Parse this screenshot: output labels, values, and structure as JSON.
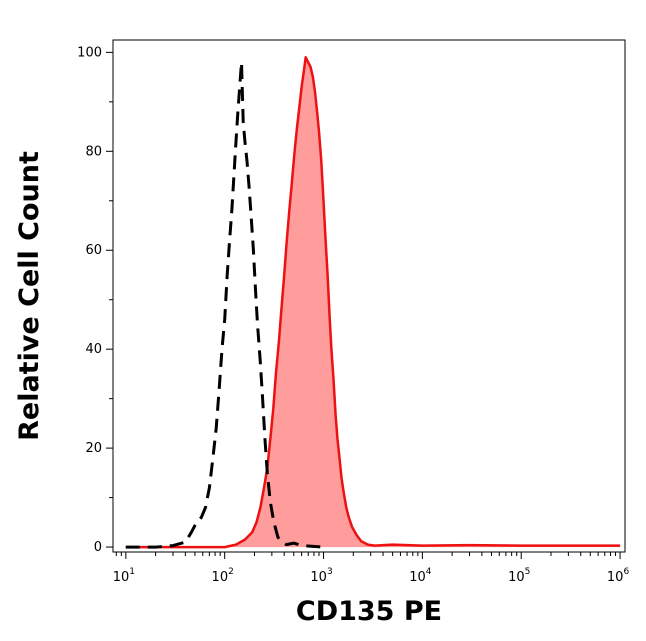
{
  "chart_data": {
    "type": "area",
    "title": "",
    "xlabel": "CD135 PE",
    "ylabel": "Relative Cell Count",
    "x_scale": "log",
    "xlim": [
      10,
      1000000
    ],
    "ylim": [
      0,
      100
    ],
    "grid": false,
    "x_ticks": [
      {
        "base": "10",
        "exp": "1",
        "value": 10
      },
      {
        "base": "10",
        "exp": "2",
        "value": 100
      },
      {
        "base": "10",
        "exp": "3",
        "value": 1000
      },
      {
        "base": "10",
        "exp": "4",
        "value": 10000
      },
      {
        "base": "10",
        "exp": "5",
        "value": 100000
      },
      {
        "base": "10",
        "exp": "6",
        "value": 1000000
      }
    ],
    "y_ticks": [
      {
        "label": "0",
        "value": 0
      },
      {
        "label": "20",
        "value": 20
      },
      {
        "label": "40",
        "value": 40
      },
      {
        "label": "60",
        "value": 60
      },
      {
        "label": "80",
        "value": 80
      },
      {
        "label": "100",
        "value": 100
      }
    ],
    "series": [
      {
        "style": "dashed",
        "line_color": "#000000",
        "fill": false,
        "points": [
          [
            10,
            0
          ],
          [
            20,
            0
          ],
          [
            30,
            0.3
          ],
          [
            40,
            1
          ],
          [
            46,
            3
          ],
          [
            52,
            5
          ],
          [
            58,
            6
          ],
          [
            64,
            8
          ],
          [
            70,
            12
          ],
          [
            76,
            18
          ],
          [
            82,
            24
          ],
          [
            88,
            32
          ],
          [
            94,
            40
          ],
          [
            100,
            46
          ],
          [
            106,
            55
          ],
          [
            112,
            62
          ],
          [
            118,
            68
          ],
          [
            124,
            75
          ],
          [
            130,
            82
          ],
          [
            136,
            88
          ],
          [
            142,
            93
          ],
          [
            148,
            98
          ],
          [
            154,
            86
          ],
          [
            160,
            82
          ],
          [
            168,
            78
          ],
          [
            176,
            73
          ],
          [
            185,
            67
          ],
          [
            195,
            60
          ],
          [
            205,
            52
          ],
          [
            215,
            45
          ],
          [
            228,
            38
          ],
          [
            240,
            31
          ],
          [
            255,
            22
          ],
          [
            270,
            15
          ],
          [
            290,
            9
          ],
          [
            315,
            5
          ],
          [
            345,
            2
          ],
          [
            380,
            1
          ],
          [
            420,
            0.5
          ],
          [
            500,
            0.8
          ],
          [
            600,
            0.3
          ],
          [
            1000,
            0
          ]
        ]
      },
      {
        "style": "solid",
        "line_color": "#ee1111",
        "fill": true,
        "fill_color": "#ff9c9c",
        "points": [
          [
            10,
            0
          ],
          [
            100,
            0
          ],
          [
            130,
            0.5
          ],
          [
            160,
            1.5
          ],
          [
            190,
            3
          ],
          [
            210,
            5
          ],
          [
            230,
            8
          ],
          [
            250,
            12
          ],
          [
            270,
            16
          ],
          [
            290,
            22
          ],
          [
            310,
            28
          ],
          [
            330,
            35
          ],
          [
            355,
            42
          ],
          [
            375,
            48
          ],
          [
            400,
            55
          ],
          [
            425,
            62
          ],
          [
            450,
            68
          ],
          [
            480,
            74
          ],
          [
            510,
            80
          ],
          [
            540,
            85
          ],
          [
            570,
            89
          ],
          [
            600,
            93
          ],
          [
            630,
            96
          ],
          [
            660,
            99
          ],
          [
            700,
            98
          ],
          [
            740,
            97
          ],
          [
            780,
            95
          ],
          [
            820,
            92
          ],
          [
            860,
            88
          ],
          [
            900,
            84
          ],
          [
            950,
            78
          ],
          [
            1000,
            70
          ],
          [
            1050,
            62
          ],
          [
            1100,
            55
          ],
          [
            1150,
            47
          ],
          [
            1200,
            40
          ],
          [
            1260,
            34
          ],
          [
            1320,
            27
          ],
          [
            1380,
            22
          ],
          [
            1450,
            18
          ],
          [
            1520,
            14
          ],
          [
            1600,
            11
          ],
          [
            1700,
            8
          ],
          [
            1800,
            6
          ],
          [
            1950,
            4
          ],
          [
            2150,
            2.5
          ],
          [
            2400,
            1.2
          ],
          [
            2800,
            0.5
          ],
          [
            3300,
            0.3
          ],
          [
            5000,
            0.5
          ],
          [
            10000,
            0.3
          ],
          [
            30000,
            0.4
          ],
          [
            100000,
            0.3
          ],
          [
            1000000,
            0.3
          ]
        ]
      }
    ]
  }
}
